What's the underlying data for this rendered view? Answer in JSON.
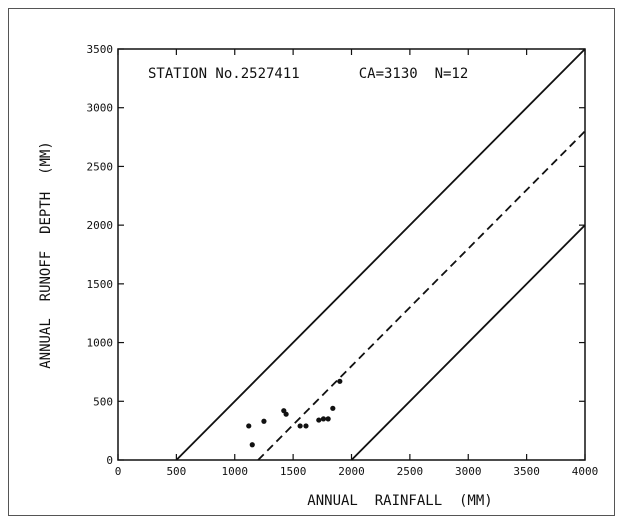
{
  "chart_data": {
    "type": "scatter",
    "annotation": "STATION No.2527411       CA=3130  N=12",
    "xlabel": "ANNUAL  RAINFALL  (MM)",
    "ylabel": "ANNUAL  RUNOFF  DEPTH  (MM)",
    "xlim": [
      0,
      4000
    ],
    "ylim": [
      0,
      3500
    ],
    "x_ticks": [
      0,
      500,
      1000,
      1500,
      2000,
      2500,
      3000,
      3500,
      4000
    ],
    "y_ticks": [
      0,
      500,
      1000,
      1500,
      2000,
      2500,
      3000,
      3500
    ],
    "grid": false,
    "points": [
      {
        "x": 1120,
        "y": 290
      },
      {
        "x": 1150,
        "y": 130
      },
      {
        "x": 1250,
        "y": 330
      },
      {
        "x": 1420,
        "y": 420
      },
      {
        "x": 1440,
        "y": 390
      },
      {
        "x": 1560,
        "y": 290
      },
      {
        "x": 1610,
        "y": 290
      },
      {
        "x": 1720,
        "y": 340
      },
      {
        "x": 1760,
        "y": 350
      },
      {
        "x": 1800,
        "y": 350
      },
      {
        "x": 1840,
        "y": 440
      },
      {
        "x": 1900,
        "y": 670
      }
    ],
    "reference_lines": [
      {
        "style": "solid",
        "from": [
          500,
          0
        ],
        "to": [
          4000,
          3500
        ]
      },
      {
        "style": "dashed",
        "from": [
          1200,
          0
        ],
        "to": [
          4000,
          2800
        ]
      },
      {
        "style": "solid",
        "from": [
          2000,
          0
        ],
        "to": [
          4000,
          2000
        ]
      }
    ],
    "colors": {
      "ink": "#111111",
      "background": "#ffffff"
    }
  }
}
